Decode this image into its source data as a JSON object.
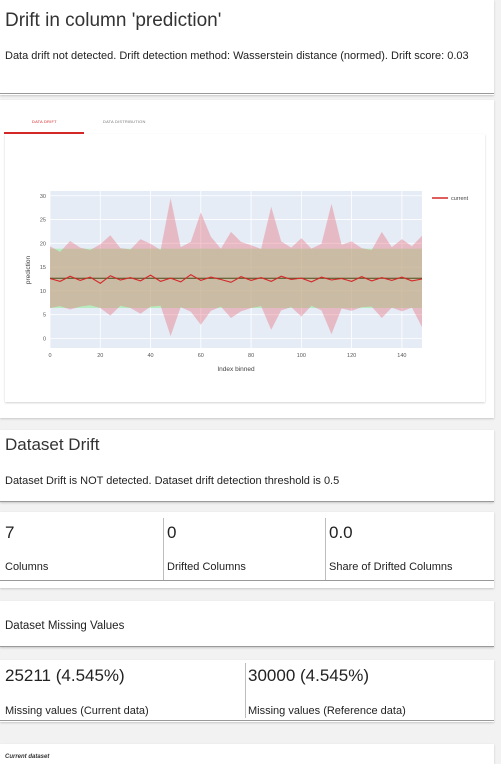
{
  "column_drift": {
    "title": "Drift in column 'prediction'",
    "description": "Data drift not detected. Drift detection method: Wasserstein distance (normed). Drift score: 0.03",
    "tabs": [
      {
        "label": "DATA DRIFT",
        "active": true
      },
      {
        "label": "DATA DISTRIBUTION",
        "active": false
      }
    ]
  },
  "chart_data": {
    "type": "line",
    "xlabel": "Index binned",
    "ylabel": "prediction",
    "xlim": [
      0,
      148
    ],
    "ylim": [
      -2,
      31
    ],
    "x_ticks": [
      0,
      20,
      40,
      60,
      80,
      100,
      120,
      140
    ],
    "y_ticks": [
      0,
      5,
      10,
      15,
      20,
      25,
      30
    ],
    "reference_band": {
      "lower": 6.4,
      "upper": 18.9,
      "color": "#90ee90"
    },
    "series": [
      {
        "name": "current",
        "color": "#d62728",
        "x": [
          0,
          4,
          8,
          12,
          16,
          20,
          24,
          28,
          32,
          36,
          40,
          44,
          48,
          52,
          56,
          60,
          64,
          68,
          72,
          76,
          80,
          84,
          88,
          92,
          96,
          100,
          104,
          108,
          112,
          116,
          120,
          124,
          128,
          132,
          136,
          140,
          144,
          148
        ],
        "values": [
          12.6,
          12.0,
          13.1,
          12.2,
          12.9,
          11.6,
          13.2,
          12.3,
          12.8,
          12.1,
          13.3,
          12.0,
          12.7,
          11.9,
          13.4,
          12.2,
          12.9,
          12.4,
          11.8,
          13.0,
          12.2,
          12.8,
          12.0,
          13.1,
          12.4,
          12.7,
          11.9,
          12.9,
          12.3,
          12.6,
          12.0,
          13.0,
          12.1,
          12.8,
          12.2,
          12.9,
          12.1,
          12.5
        ],
        "band_upper": [
          19.4,
          18.2,
          20.5,
          19.1,
          18.6,
          19.8,
          21.7,
          19.0,
          18.7,
          20.9,
          19.9,
          18.6,
          29.5,
          19.2,
          20.3,
          26.5,
          21.4,
          18.9,
          22.4,
          20.3,
          19.6,
          18.8,
          27.7,
          20.4,
          19.1,
          21.1,
          18.9,
          19.9,
          28.3,
          19.7,
          20.4,
          19.0,
          18.6,
          22.4,
          19.2,
          20.9,
          19.4,
          21.6
        ],
        "band_lower": [
          6.4,
          6.8,
          6.1,
          6.7,
          7.0,
          6.4,
          4.8,
          6.9,
          6.4,
          5.2,
          6.7,
          6.9,
          0.5,
          6.6,
          5.6,
          2.9,
          5.8,
          6.7,
          4.3,
          5.7,
          6.4,
          6.8,
          1.8,
          5.9,
          6.6,
          4.6,
          6.9,
          5.9,
          0.9,
          6.3,
          5.8,
          6.6,
          6.7,
          4.3,
          6.5,
          5.7,
          6.5,
          2.4
        ]
      }
    ]
  },
  "dataset_drift": {
    "title": "Dataset Drift",
    "description": "Dataset Drift is NOT detected. Dataset drift detection threshold is 0.5"
  },
  "counters": [
    {
      "value": "7",
      "label": "Columns"
    },
    {
      "value": "0",
      "label": "Drifted Columns"
    },
    {
      "value": "0.0",
      "label": "Share of Drifted Columns"
    }
  ],
  "missing_values": {
    "title": "Dataset Missing Values",
    "items": [
      {
        "value": "25211 (4.545%)",
        "label": "Missing values (Current data)"
      },
      {
        "value": "30000 (4.545%)",
        "label": "Missing values (Reference data)"
      }
    ]
  },
  "current_dataset": {
    "label": "Current dataset"
  }
}
